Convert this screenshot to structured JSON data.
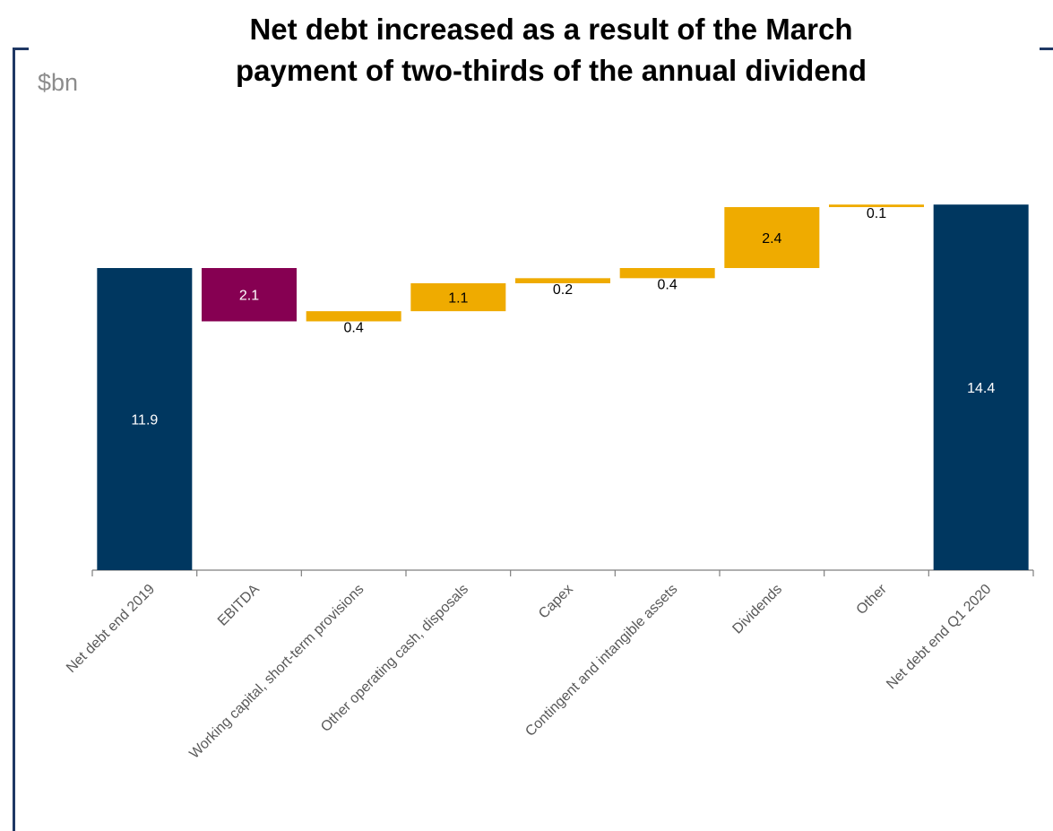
{
  "header": {
    "title_line1": "Net debt increased as a result of the March",
    "title_line2": "payment of two-thirds of the annual dividend",
    "unit": "$bn"
  },
  "colors": {
    "total": "#003760",
    "decrease": "#860052",
    "increase": "#efab00",
    "frame": "#1f3864",
    "axis": "#7f7f7f",
    "unit_text": "#8c8c8c"
  },
  "chart_data": {
    "type": "bar",
    "subtype": "waterfall",
    "title": "Net debt increased as a result of the March payment of two-thirds of the annual dividend",
    "ylabel": "$bn",
    "xlabel": "",
    "ylim": [
      0,
      16.5
    ],
    "grid": false,
    "legend": "none",
    "categories": [
      "Net debt end 2019",
      "EBITDA",
      "Working capital, short-term provisions",
      "Other operating cash, disposals",
      "Capex",
      "Contingent and intangible assets",
      "Dividends",
      "Other",
      "Net debt end Q1 2020"
    ],
    "steps": [
      {
        "kind": "total",
        "value": 11.9,
        "label": "11.9"
      },
      {
        "kind": "decrease",
        "value": -2.1,
        "label": "2.1"
      },
      {
        "kind": "increase",
        "value": 0.4,
        "label": "0.4"
      },
      {
        "kind": "increase",
        "value": 1.1,
        "label": "1.1"
      },
      {
        "kind": "increase",
        "value": 0.2,
        "label": "0.2"
      },
      {
        "kind": "increase",
        "value": 0.4,
        "label": "0.4"
      },
      {
        "kind": "increase",
        "value": 2.4,
        "label": "2.4"
      },
      {
        "kind": "increase",
        "value": 0.1,
        "label": "0.1"
      },
      {
        "kind": "total",
        "value": 14.4,
        "label": "14.4"
      }
    ]
  }
}
